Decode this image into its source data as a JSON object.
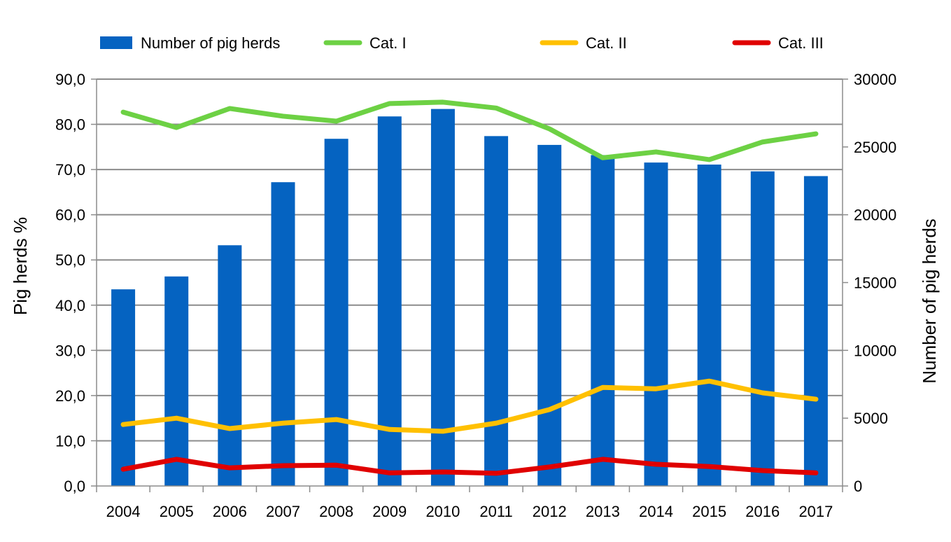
{
  "chart_data": {
    "type": "bar+line",
    "categories": [
      "2004",
      "2005",
      "2006",
      "2007",
      "2008",
      "2009",
      "2010",
      "2011",
      "2012",
      "2013",
      "2014",
      "2015",
      "2016",
      "2017"
    ],
    "bar_series": {
      "name": "Number of pig herds",
      "axis": "right",
      "color": "#0563C1",
      "values": [
        14500,
        15450,
        17750,
        22400,
        25600,
        27250,
        27800,
        25800,
        25150,
        24400,
        23850,
        23700,
        23200,
        22850
      ]
    },
    "line_series": [
      {
        "name": "Cat. I",
        "axis": "left",
        "color": "#6DD144",
        "values": [
          82.7,
          79.3,
          83.5,
          81.8,
          80.7,
          84.6,
          84.9,
          83.6,
          79.0,
          72.6,
          73.9,
          72.2,
          76.1,
          77.9
        ]
      },
      {
        "name": "Cat. II",
        "axis": "left",
        "color": "#FFC000",
        "values": [
          13.6,
          15.0,
          12.7,
          13.9,
          14.7,
          12.5,
          12.1,
          13.9,
          16.9,
          21.8,
          21.5,
          23.2,
          20.6,
          19.2
        ]
      },
      {
        "name": "Cat. III",
        "axis": "left",
        "color": "#E00000",
        "values": [
          3.7,
          5.9,
          4.0,
          4.5,
          4.6,
          2.9,
          3.1,
          2.8,
          4.2,
          5.9,
          4.8,
          4.3,
          3.4,
          2.9
        ]
      }
    ],
    "ylabel": "Pig herds %",
    "y2label": "Number of pig herds",
    "ylim": [
      0,
      90
    ],
    "y2lim": [
      0,
      30000
    ],
    "yticks": [
      "0,0",
      "10,0",
      "20,0",
      "30,0",
      "40,0",
      "50,0",
      "60,0",
      "70,0",
      "80,0",
      "90,0"
    ],
    "y2ticks": [
      "0",
      "5000",
      "10000",
      "15000",
      "20000",
      "25000",
      "30000"
    ],
    "grid": true,
    "legend_position": "top"
  }
}
